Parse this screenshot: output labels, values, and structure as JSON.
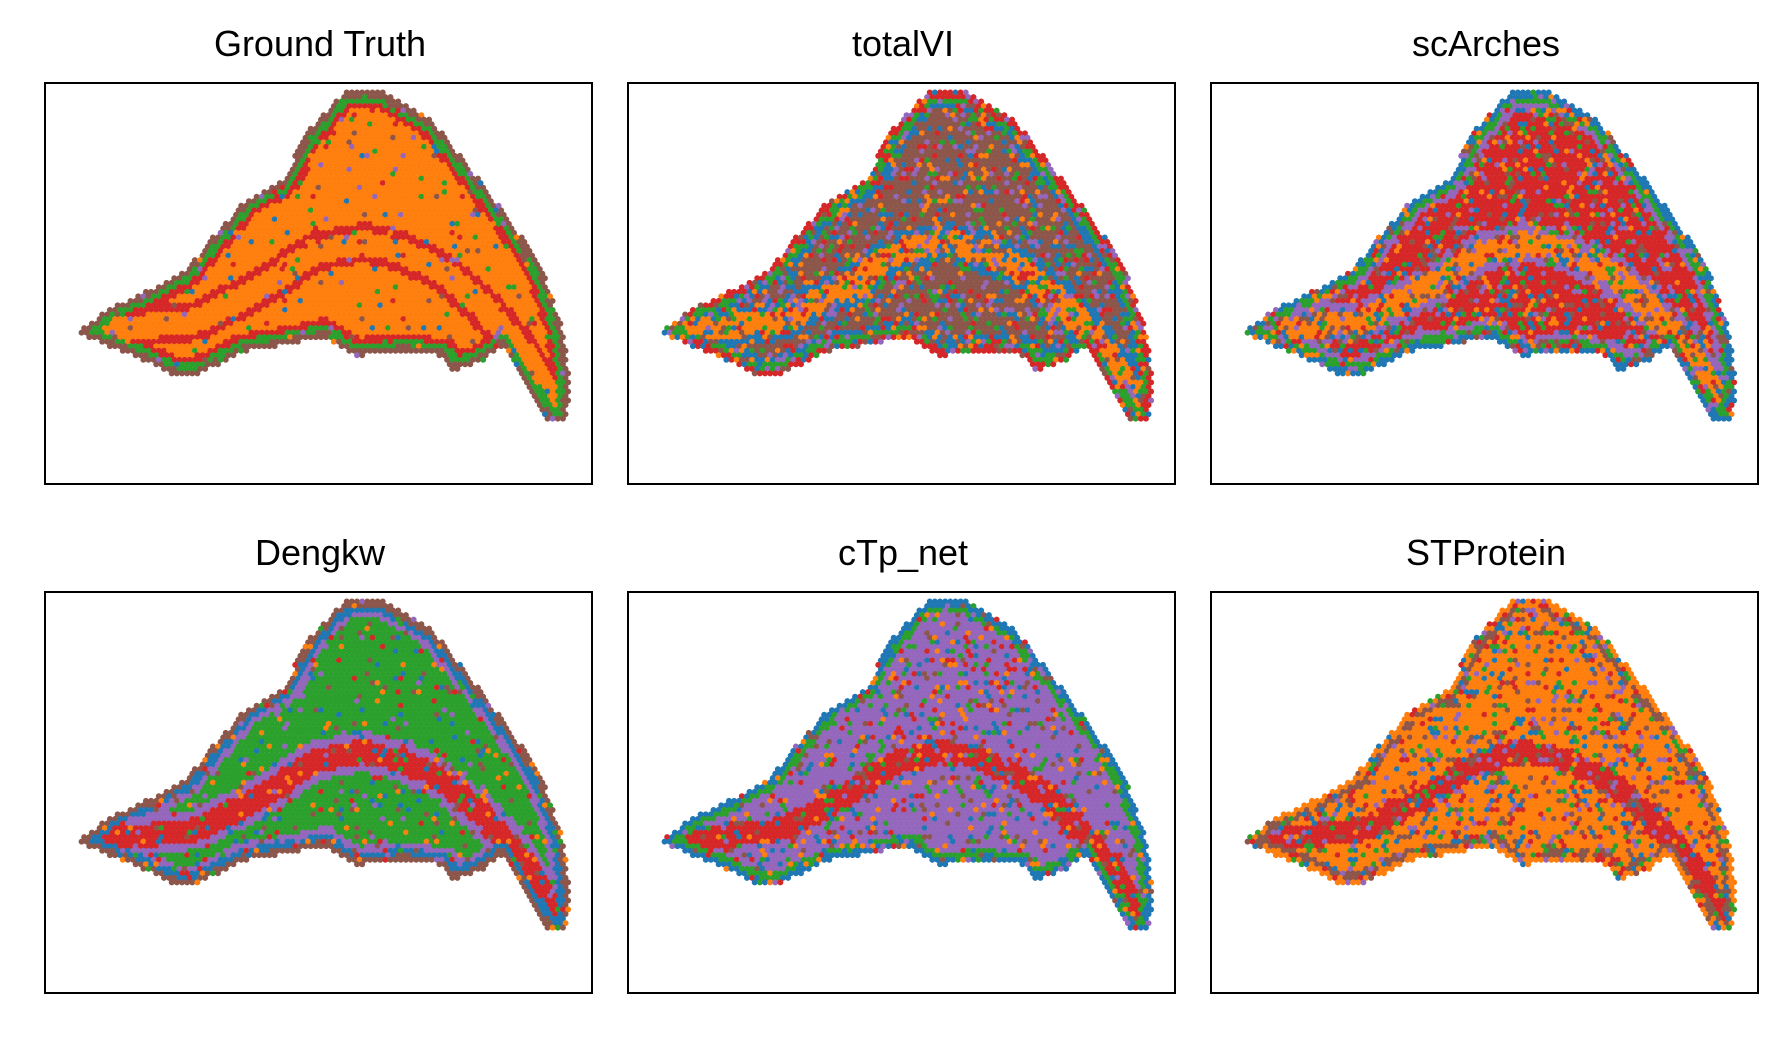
{
  "palette": {
    "blue": "#1f77b4",
    "orange": "#ff7f0e",
    "green": "#2ca02c",
    "red": "#d62728",
    "purple": "#9467bd",
    "brown": "#8c564b"
  },
  "chart_data": [
    {
      "type": "scatter",
      "title": "Ground Truth",
      "grid": false,
      "dominant": "orange",
      "bands": [
        "brown",
        "green",
        "red",
        "orange",
        "red"
      ],
      "noise": 0.08
    },
    {
      "type": "scatter",
      "title": "totalVI",
      "grid": false,
      "dominant": "brown",
      "bands": [
        "red",
        "green",
        "blue",
        "orange",
        "brown"
      ],
      "noise": 0.45
    },
    {
      "type": "scatter",
      "title": "scArches",
      "grid": false,
      "dominant": "red",
      "bands": [
        "blue",
        "green",
        "purple",
        "orange",
        "red"
      ],
      "noise": 0.4
    },
    {
      "type": "scatter",
      "title": "Dengkw",
      "grid": false,
      "dominant": "green",
      "bands": [
        "brown",
        "blue",
        "purple",
        "red",
        "green"
      ],
      "noise": 0.18
    },
    {
      "type": "scatter",
      "title": "cTp_net",
      "grid": false,
      "dominant": "purple",
      "bands": [
        "blue",
        "green",
        "purple",
        "red",
        "purple"
      ],
      "noise": 0.3
    },
    {
      "type": "scatter",
      "title": "STProtein",
      "grid": false,
      "dominant": "orange",
      "bands": [
        "orange",
        "brown",
        "orange",
        "red",
        "red"
      ],
      "noise": 0.35
    }
  ]
}
